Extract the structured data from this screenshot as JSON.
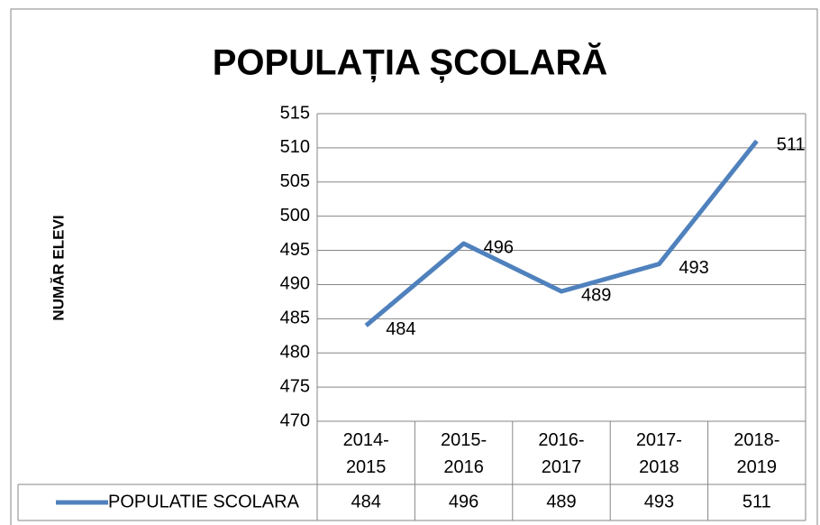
{
  "chart_data": {
    "type": "line",
    "title": "POPULAȚIA ȘCOLARĂ",
    "y_label": "NUMĂR ELEVI",
    "categories": [
      "2014-2015",
      "2015-2016",
      "2016-2017",
      "2017-2018",
      "2018-2019"
    ],
    "series": [
      {
        "name": "POPULATIE SCOLARA",
        "color": "#4f81bd",
        "values": [
          484,
          496,
          489,
          493,
          511
        ]
      }
    ],
    "ylim": [
      470,
      515
    ],
    "yticks": [
      470,
      475,
      480,
      485,
      490,
      495,
      500,
      505,
      510,
      515
    ],
    "grid": true
  }
}
